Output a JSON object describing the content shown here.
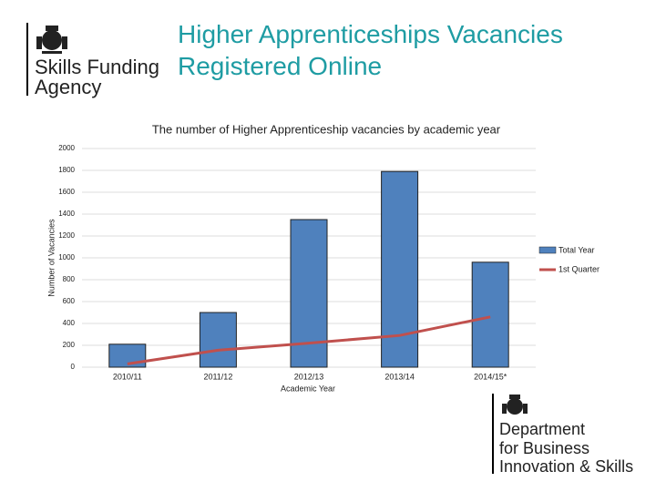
{
  "slide_title": "Higher Apprenticeships Vacancies Registered Online",
  "logo_left": {
    "lines": [
      "Skills Funding",
      "Agency"
    ]
  },
  "logo_right": {
    "lines": [
      "Department",
      "for Business",
      "Innovation & Skills"
    ]
  },
  "chart_data": {
    "type": "bar",
    "title": "The number of Higher Apprenticeship vacancies by academic year",
    "x_label": "Academic Year",
    "y_label": "Number of Vacancies",
    "categories": [
      "2010/11",
      "2011/12",
      "2012/13",
      "2013/14",
      "2014/15*"
    ],
    "series": [
      {
        "name": "Total Year",
        "type": "bar",
        "color": "#4f81bd",
        "values": [
          210,
          500,
          1350,
          1790,
          960
        ]
      },
      {
        "name": "1st Quarter",
        "type": "line",
        "color": "#c0504d",
        "values": [
          30,
          155,
          220,
          290,
          460
        ]
      }
    ],
    "ylim": [
      0,
      2000
    ],
    "yticks": [
      0,
      200,
      400,
      600,
      800,
      1000,
      1200,
      1400,
      1600,
      1800,
      2000
    ],
    "grid": true,
    "legend": "right"
  }
}
